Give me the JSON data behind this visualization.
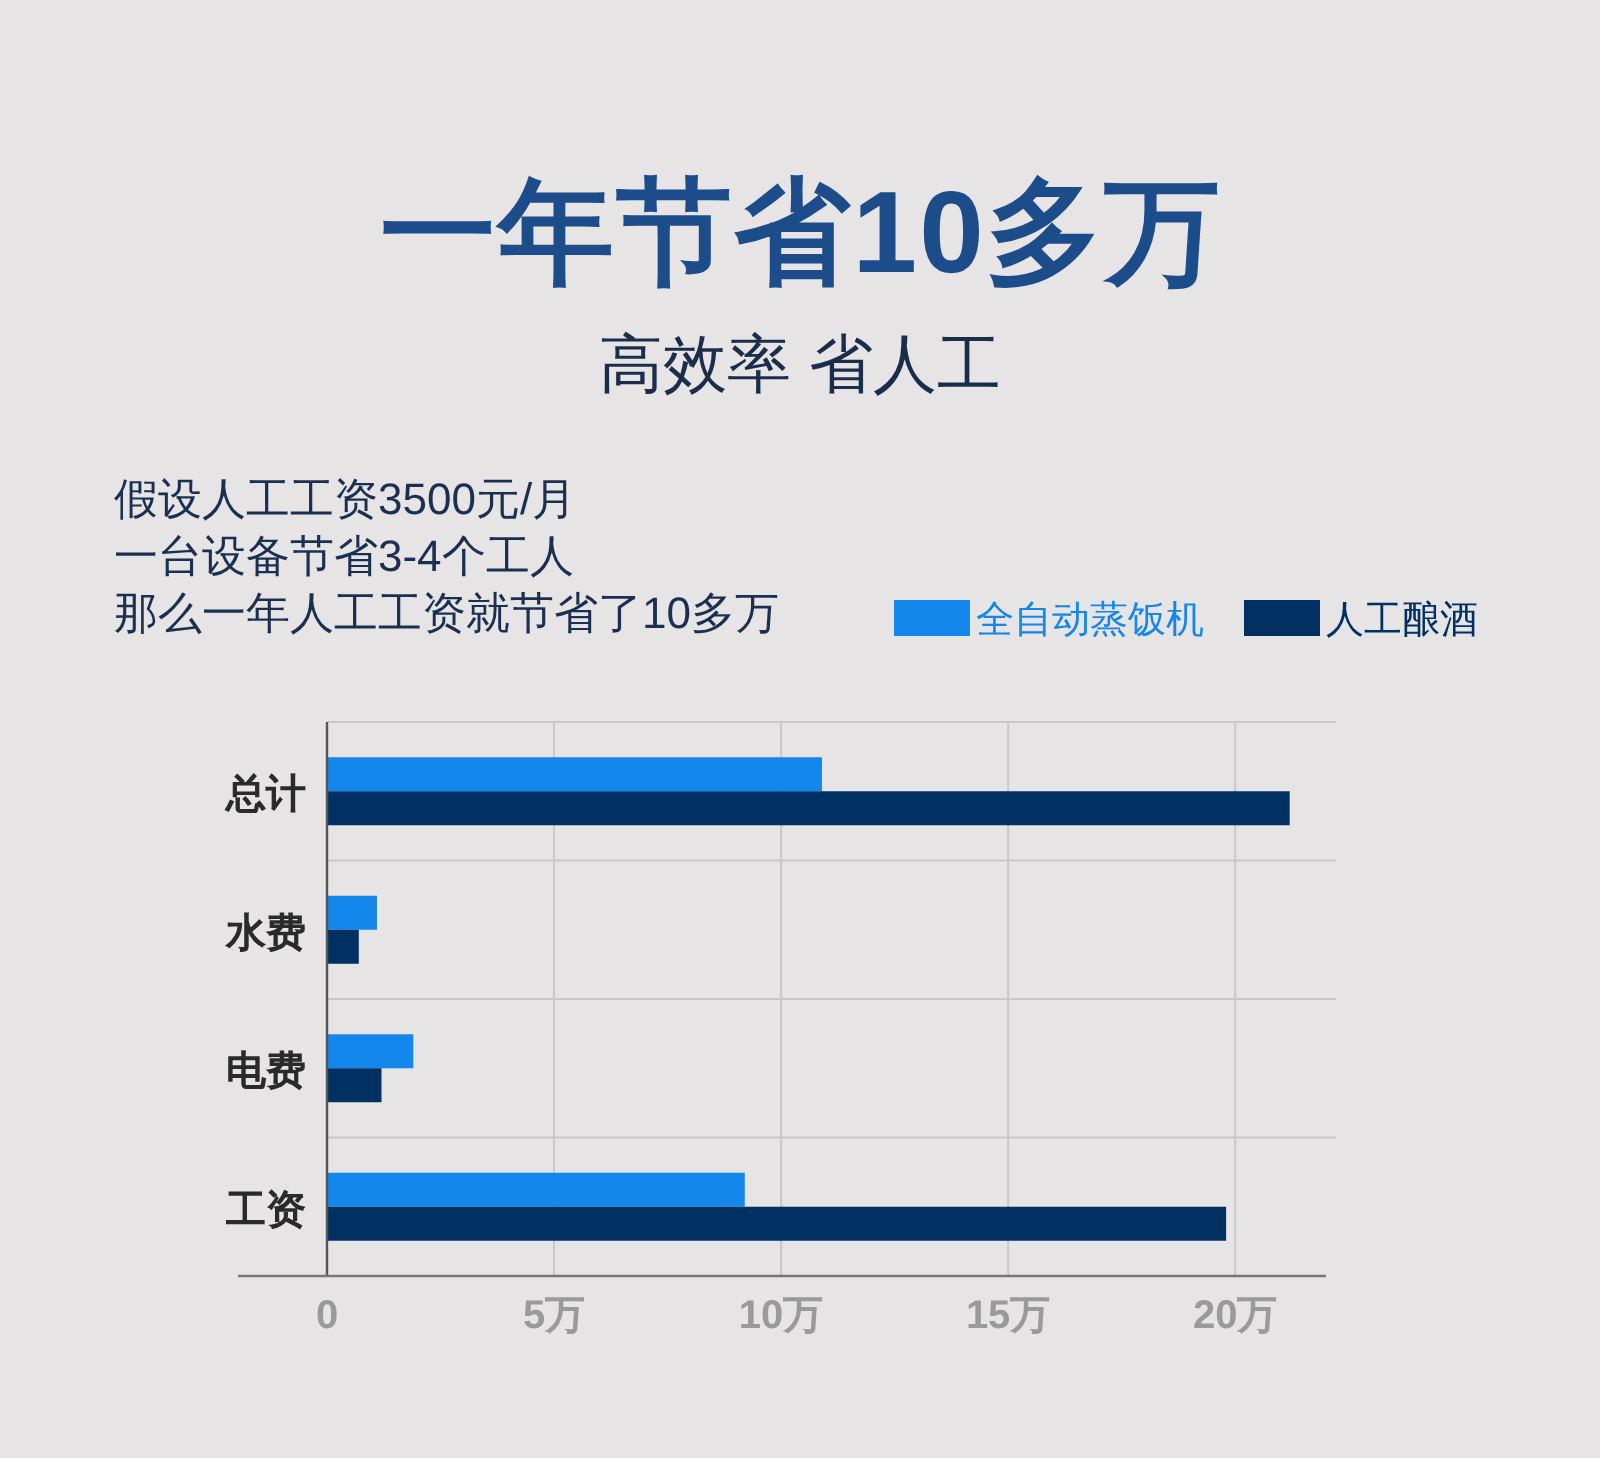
{
  "chart_data": {
    "type": "bar",
    "orientation": "horizontal",
    "title": "一年节省10多万",
    "subtitle": "高效率 省人工",
    "annotations": [
      "假设人工工资3500元/月",
      "一台设备节省3-4个工人",
      "那么一年人工工资就节省了10多万"
    ],
    "categories": [
      "总计",
      "水费",
      "电费",
      "工资"
    ],
    "series": [
      {
        "name": "全自动蒸饭机",
        "color": "#1487ec",
        "values": [
          10.9,
          1.1,
          1.9,
          9.2
        ]
      },
      {
        "name": "人工酿酒",
        "color": "#003162",
        "values": [
          21.2,
          0.7,
          1.2,
          19.8
        ]
      }
    ],
    "xlim": [
      0,
      22
    ],
    "xticks": [
      0,
      {
        "value": 5,
        "label": "5万"
      },
      {
        "value": 10,
        "label": "10万"
      },
      {
        "value": 15,
        "label": "15万"
      },
      {
        "value": 20,
        "label": "20万"
      }
    ],
    "grid": true,
    "legend": "top right"
  }
}
